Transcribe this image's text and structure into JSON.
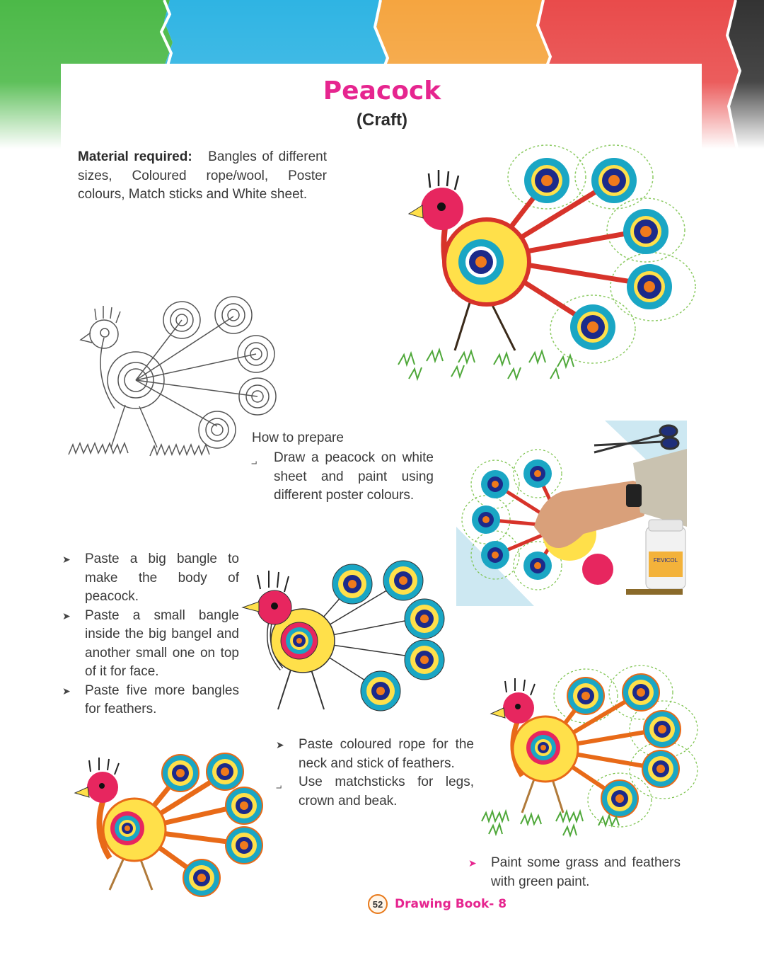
{
  "page": {
    "title": "Peacock",
    "subtitle": "(Craft)"
  },
  "material": {
    "label": "Material required:",
    "line1": "Bangles of different",
    "line2": "sizes, Coloured rope/wool, Poster",
    "line3": "colours, Match sticks and White sheet."
  },
  "how_to": {
    "heading": "How to prepare",
    "step1": "Draw a peacock on white sheet and paint using different poster colours."
  },
  "steps_left": [
    "Paste a big bangle to make the body of peacock.",
    "Paste a small bangle inside the big bangel and another small one on top of it for face.",
    "Paste five more bangles for feathers."
  ],
  "steps_mid": [
    "Paste coloured rope for the neck and stick of feathers.",
    "Use matchsticks for legs, crown and beak."
  ],
  "step_last": "Paint some grass and feathers with green paint.",
  "footer": {
    "page_number": "52",
    "book_title": "Drawing Book- 8"
  },
  "product_label": "FEVICOL",
  "colors": {
    "title_pink": "#e6258f",
    "paper_green": "#4cb948",
    "paper_blue": "#2fb4e3",
    "paper_orange": "#f5a540",
    "paper_red": "#e94b4b",
    "paper_black": "#333333",
    "peacock_yellow": "#ffe04a",
    "peacock_head": "#e7265f",
    "eye_teal": "#1aa6c4",
    "eye_navy": "#1c2a8a",
    "eye_orange": "#f07a1c"
  },
  "icons": [
    "bullet-arrow-icon",
    "scissors-icon",
    "glue-bottle-icon",
    "hand-photo"
  ]
}
